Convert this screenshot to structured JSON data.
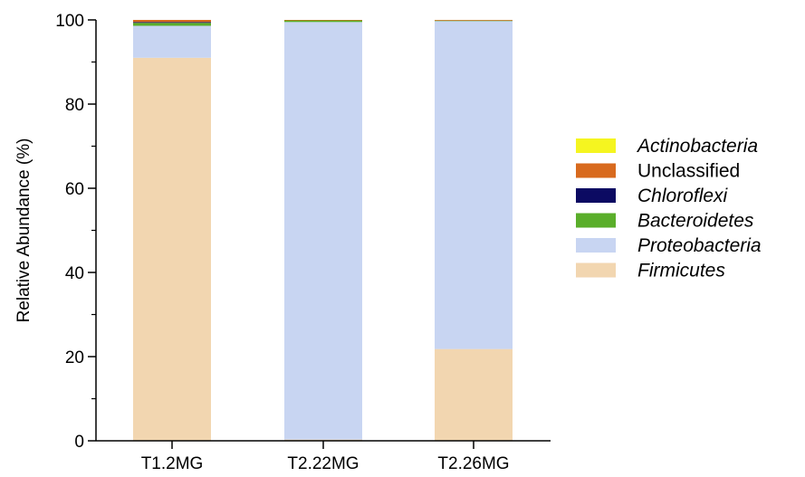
{
  "chart_data": {
    "type": "bar",
    "stacked": true,
    "categories": [
      "T1.2MG",
      "T2.22MG",
      "T2.26MG"
    ],
    "series": [
      {
        "name": "Firmicutes",
        "color": "#F2D6B0",
        "italic": true,
        "values": [
          91.0,
          0.3,
          21.8
        ]
      },
      {
        "name": "Proteobacteria",
        "color": "#C8D5F2",
        "italic": true,
        "values": [
          7.6,
          99.2,
          78.0
        ]
      },
      {
        "name": "Bacteroidetes",
        "color": "#5AAE2A",
        "italic": true,
        "values": [
          0.7,
          0.45,
          0.05
        ]
      },
      {
        "name": "Chloroflexi",
        "color": "#0C0A62",
        "italic": true,
        "values": [
          0.2,
          0.0,
          0.0
        ]
      },
      {
        "name": "Unclassified",
        "color": "#D86A1E",
        "italic": false,
        "values": [
          0.5,
          0.05,
          0.15
        ]
      },
      {
        "name": "Actinobacteria",
        "color": "#F5F520",
        "italic": true,
        "values": [
          0.0,
          0.0,
          0.0
        ]
      }
    ],
    "legend_order": [
      "Actinobacteria",
      "Unclassified",
      "Chloroflexi",
      "Bacteroidetes",
      "Proteobacteria",
      "Firmicutes"
    ],
    "ylabel": "Relative Abundance (%)",
    "xlabel": "",
    "ylim": [
      0,
      100
    ],
    "yticks": [
      0,
      20,
      40,
      60,
      80,
      100
    ],
    "grid": false,
    "legend_position": "right"
  }
}
